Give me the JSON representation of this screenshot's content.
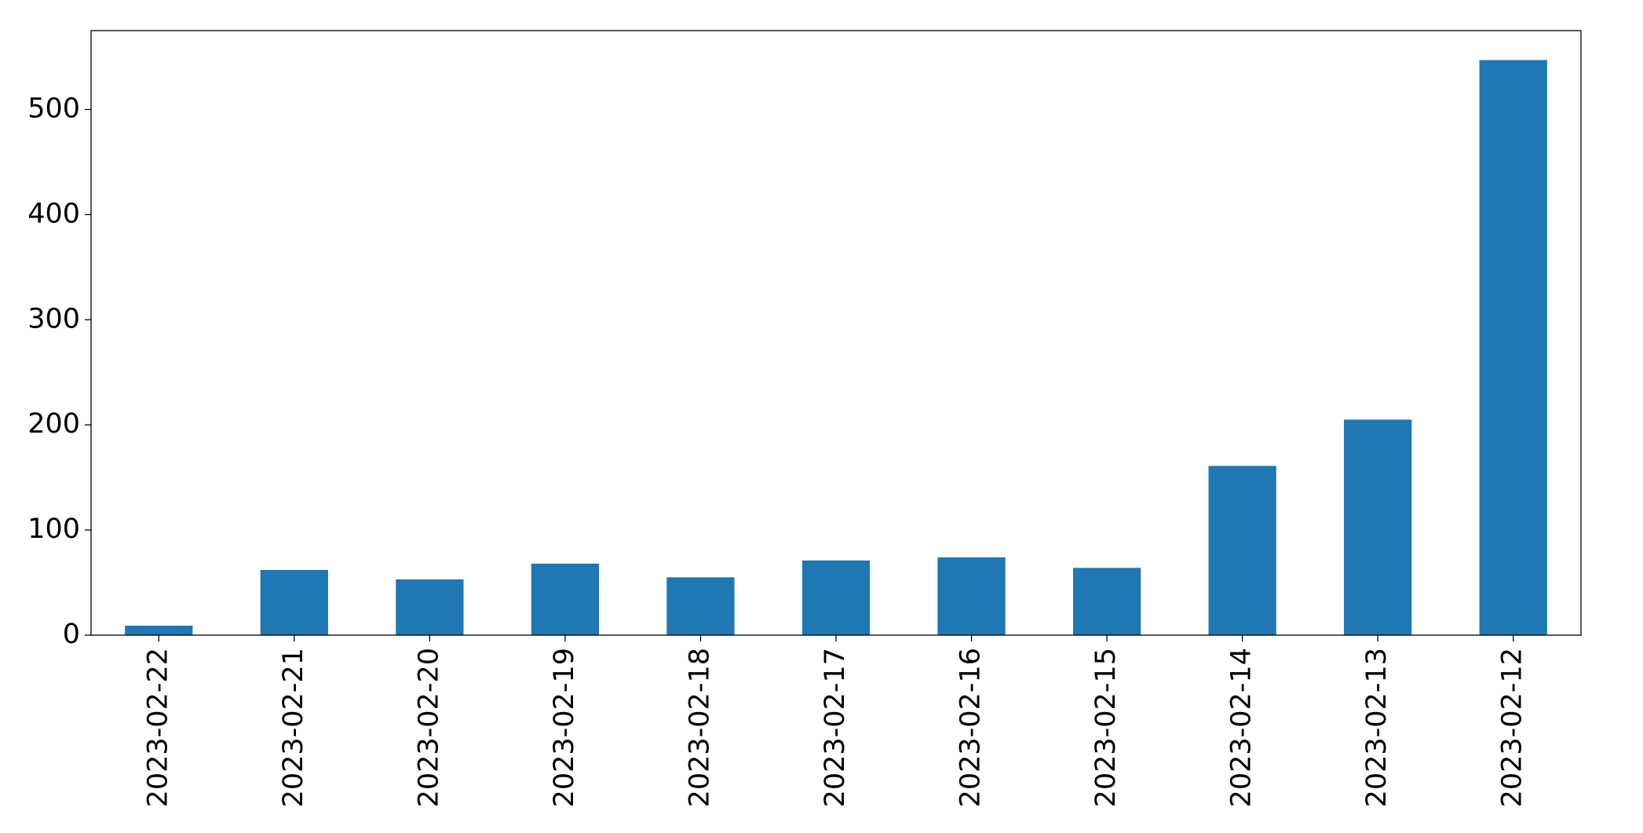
{
  "chart_data": {
    "type": "bar",
    "categories": [
      "2023-02-22",
      "2023-02-21",
      "2023-02-20",
      "2023-02-19",
      "2023-02-18",
      "2023-02-17",
      "2023-02-16",
      "2023-02-15",
      "2023-02-14",
      "2023-02-13",
      "2023-02-12"
    ],
    "values": [
      9,
      62,
      53,
      68,
      55,
      71,
      74,
      64,
      161,
      205,
      547
    ],
    "color": "#1f77b4",
    "ylim": [
      0,
      575
    ],
    "yticks": [
      0,
      100,
      200,
      300,
      400,
      500
    ],
    "grid": false
  }
}
